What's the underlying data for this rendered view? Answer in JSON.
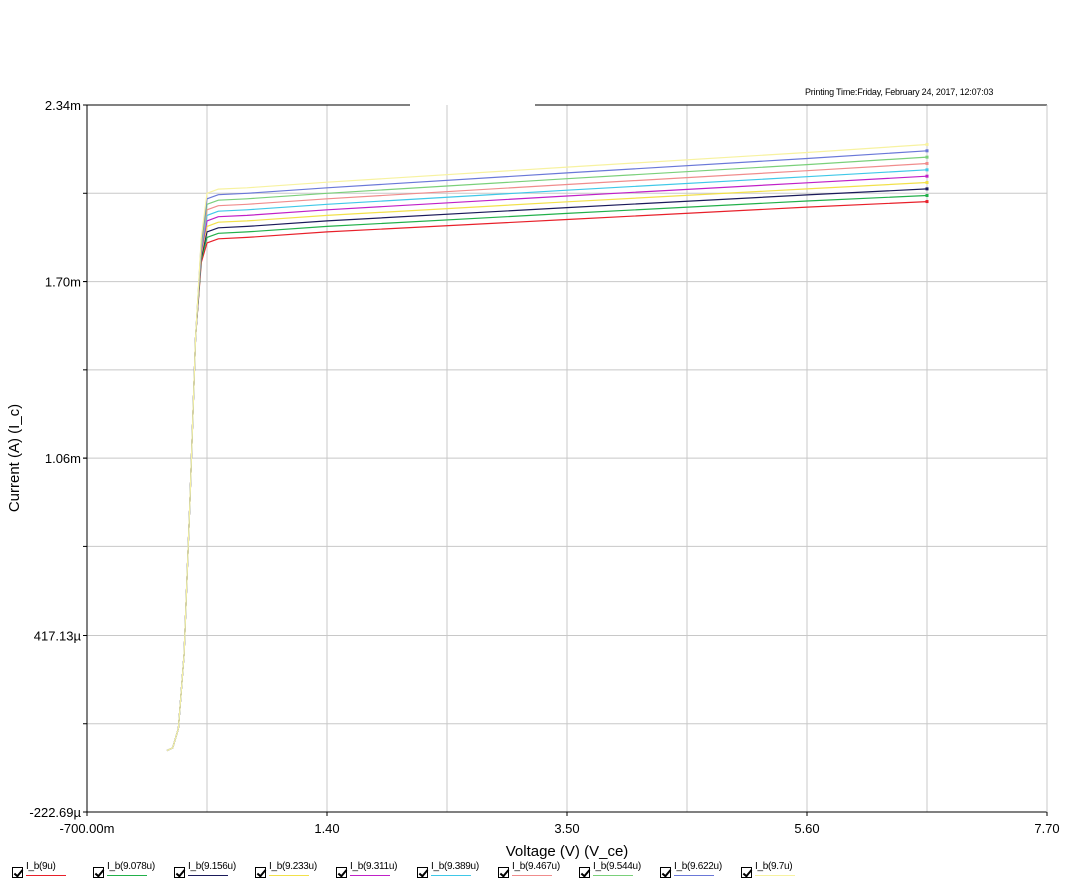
{
  "header": {
    "printing_time": "Printing Time:Friday, February 24, 2017, 12:07:03"
  },
  "chart_data": {
    "type": "line",
    "xlabel": "Voltage (V) (V_ce)",
    "ylabel": "Current (A) (I_c)",
    "xlim": [
      -0.7,
      7.7
    ],
    "ylim": [
      -0.00022269,
      0.00234
    ],
    "x_ticks": [
      {
        "value": -0.7,
        "label": "-700.00m"
      },
      {
        "value": 1.4,
        "label": "1.40"
      },
      {
        "value": 3.5,
        "label": "3.50"
      },
      {
        "value": 5.6,
        "label": "5.60"
      },
      {
        "value": 7.7,
        "label": "7.70"
      }
    ],
    "y_ticks": [
      {
        "value": 0.00234,
        "label": "2.34m"
      },
      {
        "value": 0.0017,
        "label": "1.70m"
      },
      {
        "value": 0.00106,
        "label": "1.06m"
      },
      {
        "value": 0.00041713,
        "label": "417.13µ"
      },
      {
        "value": -0.00022269,
        "label": "-222.69µ"
      }
    ],
    "grid": true,
    "grid_x_lines": [
      0.35,
      1.4,
      2.45,
      3.5,
      4.55,
      5.6,
      6.65
    ],
    "grid_y_lines": [
      0.00202,
      0.0017,
      0.00138,
      0.00106,
      0.00074,
      0.00041713,
      9.722e-05
    ],
    "legend_position": "bottom",
    "series": [
      {
        "name": "I_b(9u)",
        "color": "#e8202a",
        "x": [
          0.0,
          0.05,
          0.1,
          0.15,
          0.2,
          0.25,
          0.3,
          0.35,
          0.45,
          0.7,
          1.4,
          3.5,
          5.6,
          6.65
        ],
        "y": [
          0.0,
          1e-05,
          8e-05,
          0.00035,
          0.0009,
          0.0015,
          0.00177,
          0.00184,
          0.001855,
          0.00186,
          0.00188,
          0.001925,
          0.00197,
          0.00199
        ]
      },
      {
        "name": "I_b(9.078u)",
        "color": "#22b04a",
        "x": [
          0.0,
          0.05,
          0.1,
          0.15,
          0.2,
          0.25,
          0.3,
          0.35,
          0.45,
          0.7,
          1.4,
          3.5,
          5.6,
          6.65
        ],
        "y": [
          0.0,
          1e-05,
          8e-05,
          0.00035,
          0.0009,
          0.0015,
          0.00178,
          0.00186,
          0.001875,
          0.00188,
          0.0019,
          0.001947,
          0.001992,
          0.002012
        ]
      },
      {
        "name": "I_b(9.156u)",
        "color": "#1a1a5a",
        "x": [
          0.0,
          0.05,
          0.1,
          0.15,
          0.2,
          0.25,
          0.3,
          0.35,
          0.45,
          0.7,
          1.4,
          3.5,
          5.6,
          6.65
        ],
        "y": [
          0.0,
          1e-05,
          8e-05,
          0.00035,
          0.0009,
          0.0015,
          0.00179,
          0.00188,
          0.001895,
          0.0019,
          0.00192,
          0.001968,
          0.002014,
          0.002036
        ]
      },
      {
        "name": "I_b(9.233u)",
        "color": "#f2e14a",
        "x": [
          0.0,
          0.05,
          0.1,
          0.15,
          0.2,
          0.25,
          0.3,
          0.35,
          0.45,
          0.7,
          1.4,
          3.5,
          5.6,
          6.65
        ],
        "y": [
          0.0,
          1e-05,
          8e-05,
          0.00035,
          0.0009,
          0.0015,
          0.0018,
          0.0019,
          0.001915,
          0.00192,
          0.00194,
          0.001989,
          0.002036,
          0.002059
        ]
      },
      {
        "name": "I_b(9.311u)",
        "color": "#c020c8",
        "x": [
          0.0,
          0.05,
          0.1,
          0.15,
          0.2,
          0.25,
          0.3,
          0.35,
          0.45,
          0.7,
          1.4,
          3.5,
          5.6,
          6.65
        ],
        "y": [
          0.0,
          1e-05,
          8e-05,
          0.00035,
          0.0009,
          0.0015,
          0.00181,
          0.00192,
          0.001935,
          0.00194,
          0.00196,
          0.00201,
          0.002058,
          0.002082
        ]
      },
      {
        "name": "I_b(9.389u)",
        "color": "#3fc8e8",
        "x": [
          0.0,
          0.05,
          0.1,
          0.15,
          0.2,
          0.25,
          0.3,
          0.35,
          0.45,
          0.7,
          1.4,
          3.5,
          5.6,
          6.65
        ],
        "y": [
          0.0,
          1e-05,
          8e-05,
          0.00035,
          0.0009,
          0.0015,
          0.00182,
          0.00194,
          0.001955,
          0.00196,
          0.00198,
          0.002031,
          0.00208,
          0.002105
        ]
      },
      {
        "name": "I_b(9.467u)",
        "color": "#f08c8c",
        "x": [
          0.0,
          0.05,
          0.1,
          0.15,
          0.2,
          0.25,
          0.3,
          0.35,
          0.45,
          0.7,
          1.4,
          3.5,
          5.6,
          6.65
        ],
        "y": [
          0.0,
          1e-05,
          8e-05,
          0.00035,
          0.0009,
          0.0015,
          0.00183,
          0.00196,
          0.001975,
          0.00198,
          0.002,
          0.002052,
          0.002102,
          0.002128
        ]
      },
      {
        "name": "I_b(9.544u)",
        "color": "#7ad07a",
        "x": [
          0.0,
          0.05,
          0.1,
          0.15,
          0.2,
          0.25,
          0.3,
          0.35,
          0.45,
          0.7,
          1.4,
          3.5,
          5.6,
          6.65
        ],
        "y": [
          0.0,
          1e-05,
          8e-05,
          0.00035,
          0.0009,
          0.0015,
          0.00184,
          0.00198,
          0.001995,
          0.002,
          0.00202,
          0.002073,
          0.002124,
          0.002151
        ]
      },
      {
        "name": "I_b(9.622u)",
        "color": "#6a78d8",
        "x": [
          0.0,
          0.05,
          0.1,
          0.15,
          0.2,
          0.25,
          0.3,
          0.35,
          0.45,
          0.7,
          1.4,
          3.5,
          5.6,
          6.65
        ],
        "y": [
          0.0,
          1e-05,
          8e-05,
          0.00035,
          0.0009,
          0.0015,
          0.00185,
          0.002,
          0.002015,
          0.00202,
          0.00204,
          0.002094,
          0.002146,
          0.002174
        ]
      },
      {
        "name": "I_b(9.7u)",
        "color": "#f7f2a0",
        "x": [
          0.0,
          0.05,
          0.1,
          0.15,
          0.2,
          0.25,
          0.3,
          0.35,
          0.45,
          0.7,
          1.4,
          3.5,
          5.6,
          6.65
        ],
        "y": [
          0.0,
          1e-05,
          8e-05,
          0.00035,
          0.0009,
          0.0015,
          0.00186,
          0.00202,
          0.002035,
          0.00204,
          0.00206,
          0.002115,
          0.002168,
          0.002197
        ]
      }
    ]
  }
}
